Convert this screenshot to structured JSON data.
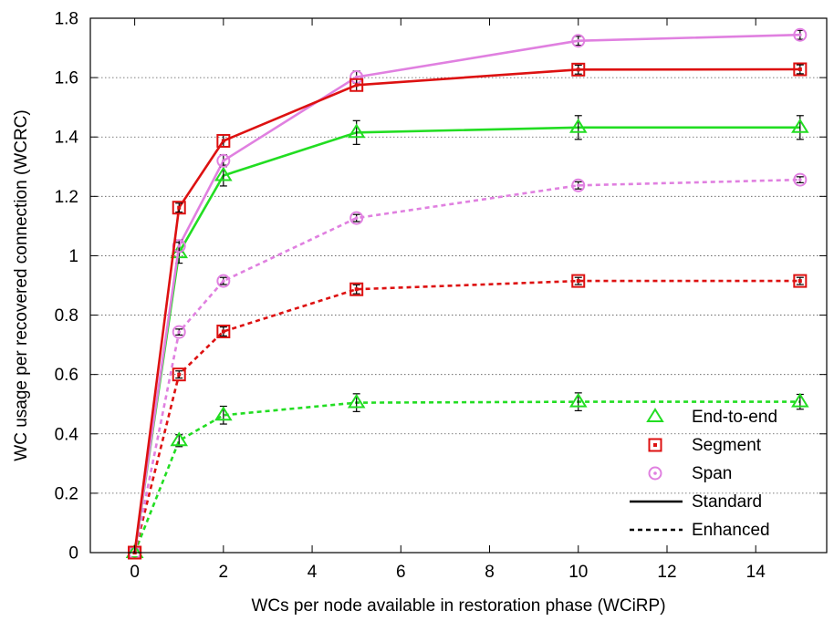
{
  "chart_data": {
    "type": "line",
    "title": "",
    "xlabel": "WCs per node available in restoration phase (WCiRP)",
    "ylabel": "WC usage per recovered connection (WCRC)",
    "xlim": [
      -1,
      15.6
    ],
    "ylim": [
      0,
      1.8
    ],
    "xticks": [
      0,
      2,
      4,
      6,
      8,
      10,
      12,
      14
    ],
    "yticks": [
      0,
      0.2,
      0.4,
      0.6,
      0.8,
      1,
      1.2,
      1.4,
      1.6,
      1.8
    ],
    "xtick_labels": [
      "0",
      "2",
      "4",
      "6",
      "8",
      "10",
      "12",
      "14"
    ],
    "ytick_labels": [
      "0",
      "0.2",
      "0.4",
      "0.6",
      "0.8",
      "1",
      "1.2",
      "1.4",
      "1.6",
      "1.8"
    ],
    "grid": "horizontal dotted",
    "legend_position": "bottom-right",
    "x": [
      0,
      1,
      2,
      5,
      10,
      15
    ],
    "series": [
      {
        "method": "End-to-end",
        "style": "Standard",
        "color": "#22dd22",
        "marker": "triangle",
        "values": [
          0,
          1.01,
          1.27,
          1.415,
          1.432,
          1.432
        ],
        "errors": [
          0,
          0.035,
          0.035,
          0.04,
          0.04,
          0.04
        ]
      },
      {
        "method": "Segment",
        "style": "Standard",
        "color": "#dd1111",
        "marker": "square",
        "values": [
          0,
          1.162,
          1.387,
          1.575,
          1.627,
          1.628
        ],
        "errors": [
          0,
          0.015,
          0.02,
          0.02,
          0.015,
          0.015
        ]
      },
      {
        "method": "Span",
        "style": "Standard",
        "color": "#e080e0",
        "marker": "circle",
        "values": [
          0,
          1.033,
          1.32,
          1.602,
          1.724,
          1.744
        ],
        "errors": [
          0,
          0.02,
          0.02,
          0.02,
          0.015,
          0.015
        ]
      },
      {
        "method": "End-to-end",
        "style": "Enhanced",
        "color": "#22dd22",
        "marker": "triangle",
        "values": [
          0,
          0.377,
          0.463,
          0.505,
          0.508,
          0.508
        ],
        "errors": [
          0,
          0.02,
          0.03,
          0.03,
          0.03,
          0.025
        ]
      },
      {
        "method": "Segment",
        "style": "Enhanced",
        "color": "#dd1111",
        "marker": "square",
        "values": [
          0,
          0.6,
          0.745,
          0.887,
          0.915,
          0.915
        ],
        "errors": [
          0,
          0.012,
          0.015,
          0.015,
          0.012,
          0.012
        ]
      },
      {
        "method": "Span",
        "style": "Enhanced",
        "color": "#e080e0",
        "marker": "circle",
        "values": [
          0,
          0.743,
          0.915,
          1.127,
          1.237,
          1.256
        ],
        "errors": [
          0,
          0.01,
          0.012,
          0.012,
          0.012,
          0.01
        ]
      }
    ],
    "legend": {
      "markers": [
        {
          "label": "End-to-end",
          "color": "#22dd22",
          "marker": "triangle"
        },
        {
          "label": "Segment",
          "color": "#dd1111",
          "marker": "square"
        },
        {
          "label": "Span",
          "color": "#e080e0",
          "marker": "circle"
        }
      ],
      "lines": [
        {
          "label": "Standard",
          "dash": "solid"
        },
        {
          "label": "Enhanced",
          "dash": "dashed"
        }
      ]
    }
  }
}
